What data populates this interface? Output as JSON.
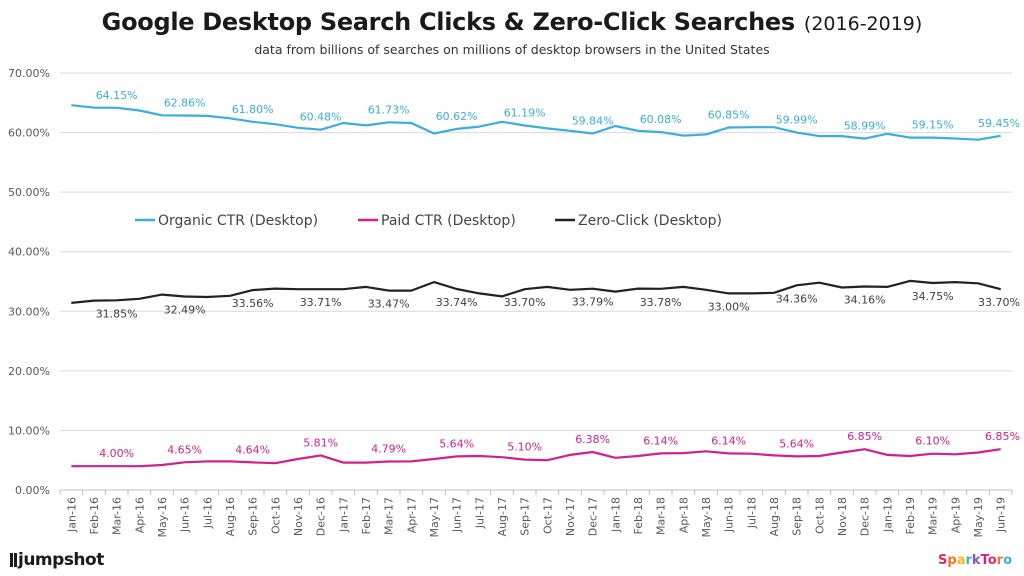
{
  "header": {
    "title": "Google Desktop Search Clicks & Zero-Click Searches",
    "title_years": "(2016-2019)",
    "subtitle": "data from billions of searches on millions of desktop browsers in the United States"
  },
  "logos": {
    "left": "jumpshot",
    "right": "SparkToro"
  },
  "colors": {
    "organic": "#3aaee0",
    "paid": "#d21f8c",
    "zero_click": "#222222",
    "grid": "#d9d9d9",
    "axis_text": "#595959"
  },
  "chart_data": {
    "type": "line",
    "categories": [
      "Jan-16",
      "Feb-16",
      "Mar-16",
      "Apr-16",
      "May-16",
      "Jun-16",
      "Jul-16",
      "Aug-16",
      "Sep-16",
      "Oct-16",
      "Nov-16",
      "Dec-16",
      "Jan-17",
      "Feb-17",
      "Mar-17",
      "Apr-17",
      "May-17",
      "Jun-17",
      "Jul-17",
      "Aug-17",
      "Sep-17",
      "Oct-17",
      "Nov-17",
      "Dec-17",
      "Jan-18",
      "Feb-18",
      "Mar-18",
      "Apr-18",
      "May-18",
      "Jun-18",
      "Jul-18",
      "Aug-18",
      "Sep-18",
      "Oct-18",
      "Nov-18",
      "Dec-18",
      "Jan-19",
      "Feb-19",
      "Mar-19",
      "Apr-19",
      "May-19",
      "Jun-19"
    ],
    "y_ticks": [
      "0.00%",
      "10.00%",
      "20.00%",
      "30.00%",
      "40.00%",
      "50.00%",
      "60.00%",
      "70.00%"
    ],
    "ylim": [
      0,
      70
    ],
    "grid": true,
    "legend_position": "middle",
    "series": [
      {
        "key": "organic",
        "name": "Organic CTR (Desktop)",
        "values": [
          64.6,
          64.2,
          64.15,
          63.7,
          62.9,
          62.86,
          62.8,
          62.4,
          61.8,
          61.4,
          60.8,
          60.48,
          61.6,
          61.2,
          61.73,
          61.6,
          59.84,
          60.62,
          61.0,
          61.8,
          61.19,
          60.7,
          60.3,
          59.84,
          61.1,
          60.3,
          60.08,
          59.5,
          59.7,
          60.85,
          60.9,
          60.9,
          59.99,
          59.4,
          59.4,
          58.99,
          59.8,
          59.15,
          59.15,
          59.0,
          58.8,
          59.45
        ],
        "labels": [
          {
            "index": 2,
            "text": "64.15%"
          },
          {
            "index": 5,
            "text": "62.86%"
          },
          {
            "index": 8,
            "text": "61.80%"
          },
          {
            "index": 11,
            "text": "60.48%"
          },
          {
            "index": 14,
            "text": "61.73%"
          },
          {
            "index": 17,
            "text": "60.62%"
          },
          {
            "index": 20,
            "text": "61.19%"
          },
          {
            "index": 23,
            "text": "59.84%"
          },
          {
            "index": 26,
            "text": "60.08%"
          },
          {
            "index": 29,
            "text": "60.85%"
          },
          {
            "index": 32,
            "text": "59.99%"
          },
          {
            "index": 35,
            "text": "58.99%"
          },
          {
            "index": 38,
            "text": "59.15%"
          },
          {
            "index": 41,
            "text": "59.45%"
          }
        ]
      },
      {
        "key": "zero_click",
        "name": "Zero-Click (Desktop)",
        "values": [
          31.4,
          31.8,
          31.85,
          32.1,
          32.8,
          32.49,
          32.4,
          32.6,
          33.56,
          33.8,
          33.7,
          33.71,
          33.7,
          34.1,
          33.47,
          33.47,
          34.9,
          33.74,
          33.0,
          32.5,
          33.7,
          34.1,
          33.6,
          33.79,
          33.3,
          33.8,
          33.78,
          34.1,
          33.6,
          33.0,
          33.0,
          33.1,
          34.36,
          34.8,
          34.0,
          34.16,
          34.1,
          35.1,
          34.75,
          34.9,
          34.7,
          33.7
        ],
        "labels": [
          {
            "index": 2,
            "text": "31.85%"
          },
          {
            "index": 5,
            "text": "32.49%"
          },
          {
            "index": 8,
            "text": "33.56%"
          },
          {
            "index": 11,
            "text": "33.71%"
          },
          {
            "index": 14,
            "text": "33.47%"
          },
          {
            "index": 17,
            "text": "33.74%"
          },
          {
            "index": 20,
            "text": "33.70%"
          },
          {
            "index": 23,
            "text": "33.79%"
          },
          {
            "index": 26,
            "text": "33.78%"
          },
          {
            "index": 29,
            "text": "33.00%"
          },
          {
            "index": 32,
            "text": "34.36%"
          },
          {
            "index": 35,
            "text": "34.16%"
          },
          {
            "index": 38,
            "text": "34.75%"
          },
          {
            "index": 41,
            "text": "33.70%"
          }
        ]
      },
      {
        "key": "paid",
        "name": "Paid CTR (Desktop)",
        "values": [
          4.0,
          4.0,
          4.0,
          4.0,
          4.2,
          4.65,
          4.8,
          4.8,
          4.64,
          4.5,
          5.2,
          5.81,
          4.6,
          4.6,
          4.79,
          4.8,
          5.2,
          5.64,
          5.7,
          5.5,
          5.1,
          5.0,
          5.9,
          6.38,
          5.4,
          5.7,
          6.14,
          6.2,
          6.5,
          6.14,
          6.1,
          5.8,
          5.64,
          5.7,
          6.3,
          6.85,
          5.9,
          5.7,
          6.1,
          6.0,
          6.3,
          6.85
        ],
        "labels": [
          {
            "index": 2,
            "text": "4.00%"
          },
          {
            "index": 5,
            "text": "4.65%"
          },
          {
            "index": 8,
            "text": "4.64%"
          },
          {
            "index": 11,
            "text": "5.81%"
          },
          {
            "index": 14,
            "text": "4.79%"
          },
          {
            "index": 17,
            "text": "5.64%"
          },
          {
            "index": 20,
            "text": "5.10%"
          },
          {
            "index": 23,
            "text": "6.38%"
          },
          {
            "index": 26,
            "text": "6.14%"
          },
          {
            "index": 29,
            "text": "6.14%"
          },
          {
            "index": 32,
            "text": "5.64%"
          },
          {
            "index": 35,
            "text": "6.85%"
          },
          {
            "index": 38,
            "text": "6.10%"
          },
          {
            "index": 41,
            "text": "6.85%"
          }
        ]
      }
    ],
    "legend_order": [
      "organic",
      "paid",
      "zero_click"
    ]
  }
}
